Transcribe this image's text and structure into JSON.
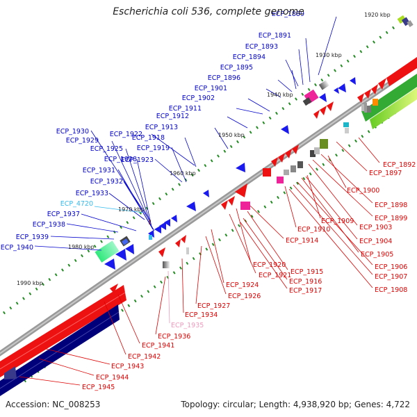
{
  "title": "Escherichia coli 536, complete genome",
  "footer": {
    "accession": "Accession: NC_008253",
    "summary": "Topology: circular; Length: 4,938,920 bp; Genes: 4,722"
  },
  "colors": {
    "backbone": "#8c8c8c",
    "label_upper": "#0000cc",
    "label_lower": "#dd0000",
    "label_highlight": "#33bbee",
    "label_pseudo": "#ee99bb",
    "tick": "#228b22"
  },
  "ticks": [
    {
      "label": "1920 kbp"
    },
    {
      "label": "1930 kbp"
    },
    {
      "label": "1940 kbp"
    },
    {
      "label": "1950 kbp"
    },
    {
      "label": "1960 kbp"
    },
    {
      "label": "1970 kbp"
    },
    {
      "label": "1980 kbp"
    },
    {
      "label": "1990 kbp"
    }
  ],
  "upper_labels": [
    {
      "text": "ECP_1889",
      "color": "#0000cc"
    },
    {
      "text": "ECP_1891",
      "color": "#0000cc"
    },
    {
      "text": "ECP_1893",
      "color": "#0000cc"
    },
    {
      "text": "ECP_1894",
      "color": "#0000cc"
    },
    {
      "text": "ECP_1895",
      "color": "#0000cc"
    },
    {
      "text": "ECP_1896",
      "color": "#0000cc"
    },
    {
      "text": "ECP_1901",
      "color": "#0000cc"
    },
    {
      "text": "ECP_1902",
      "color": "#0000cc"
    },
    {
      "text": "ECP_1911",
      "color": "#0000cc"
    },
    {
      "text": "ECP_1912",
      "color": "#0000cc"
    },
    {
      "text": "ECP_1913",
      "color": "#0000cc"
    },
    {
      "text": "ECP_1922",
      "color": "#0000cc"
    },
    {
      "text": "ECP_1918",
      "color": "#0000cc"
    },
    {
      "text": "ECP_1930",
      "color": "#0000cc"
    },
    {
      "text": "ECP_1929",
      "color": "#0000cc"
    },
    {
      "text": "ECP_1925",
      "color": "#0000cc"
    },
    {
      "text": "ECP_1919",
      "color": "#0000cc"
    },
    {
      "text": "ECP_1928",
      "color": "#0000cc"
    },
    {
      "text": "ECP_1923",
      "color": "#0000cc"
    },
    {
      "text": "ECP_1931",
      "color": "#0000cc"
    },
    {
      "text": "ECP_1932",
      "color": "#0000cc"
    },
    {
      "text": "ECP_1933",
      "color": "#0000cc"
    },
    {
      "text": "ECP_4720",
      "color": "#33bbee"
    },
    {
      "text": "ECP_1937",
      "color": "#0000cc"
    },
    {
      "text": "ECP_1938",
      "color": "#0000cc"
    },
    {
      "text": "ECP_1939",
      "color": "#0000cc"
    },
    {
      "text": "ECP_1940",
      "color": "#0000cc"
    }
  ],
  "lower_labels": [
    {
      "text": "ECP_1892",
      "color": "#dd0000"
    },
    {
      "text": "ECP_1897",
      "color": "#dd0000"
    },
    {
      "text": "ECP_1900",
      "color": "#dd0000"
    },
    {
      "text": "ECP_1898",
      "color": "#dd0000"
    },
    {
      "text": "ECP_1899",
      "color": "#dd0000"
    },
    {
      "text": "ECP_1903",
      "color": "#dd0000"
    },
    {
      "text": "ECP_1909",
      "color": "#dd0000"
    },
    {
      "text": "ECP_1910",
      "color": "#dd0000"
    },
    {
      "text": "ECP_1904",
      "color": "#dd0000"
    },
    {
      "text": "ECP_1914",
      "color": "#dd0000"
    },
    {
      "text": "ECP_1905",
      "color": "#dd0000"
    },
    {
      "text": "ECP_1906",
      "color": "#dd0000"
    },
    {
      "text": "ECP_1907",
      "color": "#dd0000"
    },
    {
      "text": "ECP_1908",
      "color": "#dd0000"
    },
    {
      "text": "ECP_1920",
      "color": "#dd0000"
    },
    {
      "text": "ECP_1915",
      "color": "#dd0000"
    },
    {
      "text": "ECP_1921",
      "color": "#dd0000"
    },
    {
      "text": "ECP_1916",
      "color": "#dd0000"
    },
    {
      "text": "ECP_1917",
      "color": "#dd0000"
    },
    {
      "text": "ECP_1924",
      "color": "#dd0000"
    },
    {
      "text": "ECP_1926",
      "color": "#dd0000"
    },
    {
      "text": "ECP_1927",
      "color": "#dd0000"
    },
    {
      "text": "ECP_1934",
      "color": "#dd0000"
    },
    {
      "text": "ECP_1935",
      "color": "#ee99bb"
    },
    {
      "text": "ECP_1936",
      "color": "#dd0000"
    },
    {
      "text": "ECP_1941",
      "color": "#dd0000"
    },
    {
      "text": "ECP_1942",
      "color": "#dd0000"
    },
    {
      "text": "ECP_1943",
      "color": "#dd0000"
    },
    {
      "text": "ECP_1944",
      "color": "#dd0000"
    },
    {
      "text": "ECP_1945",
      "color": "#dd0000"
    }
  ],
  "feature_colors": {
    "forward_gene": "#1515ee",
    "reverse_gene": "#ee1111",
    "rrna_highlight": "#ee2299",
    "islands": [
      "#33ee99",
      "#6b8e23",
      "#1fb5c8",
      "#7b68ee",
      "#00007a",
      "#aadd22",
      "#33aa33",
      "#ff8c00"
    ]
  }
}
